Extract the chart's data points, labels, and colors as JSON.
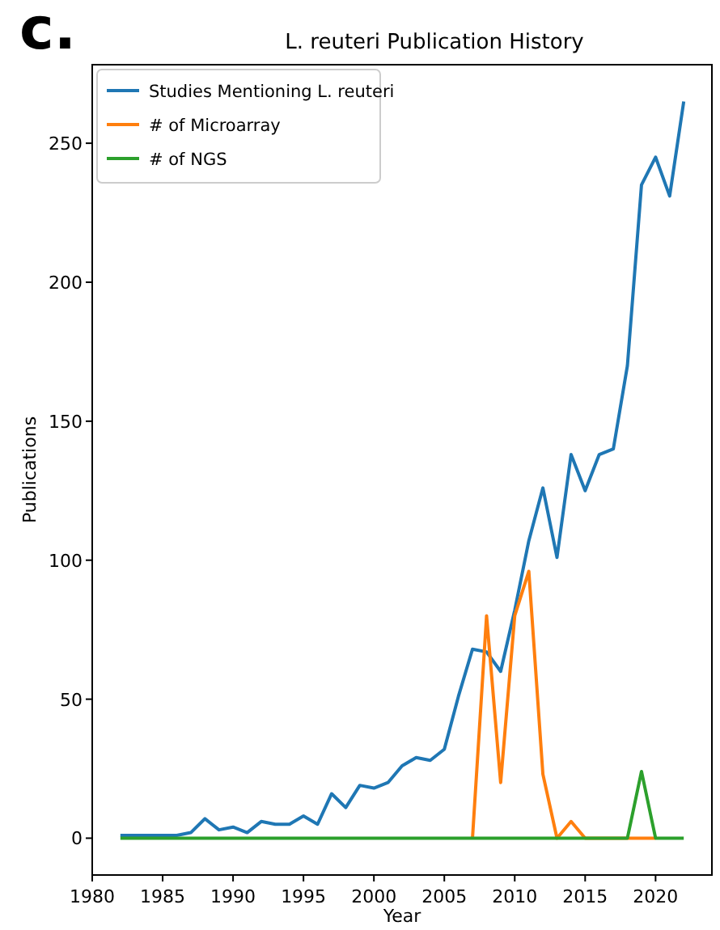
{
  "chart_data": {
    "type": "line",
    "title": "L. reuteri Publication History",
    "xlabel": "Year",
    "ylabel": "Publications",
    "annotations": [
      "c."
    ],
    "xlim": [
      1980,
      2024
    ],
    "xticks": [
      1980,
      1985,
      1990,
      1995,
      2000,
      2005,
      2010,
      2015,
      2020
    ],
    "ylim": [
      -13.25,
      278.25
    ],
    "yticks": [
      0,
      50,
      100,
      150,
      200,
      250
    ],
    "grid": false,
    "legend": "top left",
    "marker": "none",
    "line_style": "solid",
    "series": [
      {
        "name": "Studies Mentioning L. reuteri",
        "color": "#1f77b4",
        "x": [
          1982,
          1983,
          1984,
          1985,
          1986,
          1987,
          1988,
          1989,
          1990,
          1991,
          1992,
          1993,
          1994,
          1995,
          1996,
          1997,
          1998,
          1999,
          2000,
          2001,
          2002,
          2003,
          2004,
          2005,
          2006,
          2007,
          2008,
          2009,
          2010,
          2011,
          2012,
          2013,
          2014,
          2015,
          2016,
          2017,
          2018,
          2019,
          2020,
          2021,
          2022
        ],
        "values": [
          1,
          1,
          1,
          1,
          1,
          2,
          7,
          3,
          4,
          2,
          6,
          5,
          5,
          8,
          5,
          16,
          11,
          19,
          18,
          20,
          26,
          29,
          28,
          32,
          51,
          68,
          67,
          60,
          82,
          107,
          126,
          101,
          138,
          125,
          138,
          140,
          170,
          235,
          245,
          231,
          265
        ]
      },
      {
        "name": "# of Microarray",
        "color": "#ff7f0e",
        "x": [
          2007,
          2008,
          2009,
          2010,
          2011,
          2012,
          2013,
          2014,
          2015,
          2016,
          2017,
          2018,
          2019,
          2020
        ],
        "values": [
          0,
          80,
          20,
          80,
          96,
          23,
          0,
          6,
          0,
          null,
          null,
          0,
          0,
          0
        ]
      },
      {
        "name": "# of NGS",
        "color": "#2ca02c",
        "x": [
          1982,
          1983,
          1984,
          1985,
          1986,
          1987,
          1988,
          1989,
          1990,
          1991,
          1992,
          1993,
          1994,
          1995,
          1996,
          1997,
          1998,
          1999,
          2000,
          2001,
          2002,
          2003,
          2004,
          2005,
          2006,
          2007,
          2008,
          2009,
          2010,
          2011,
          2012,
          2013,
          2014,
          2015,
          2016,
          2017,
          2018,
          2019,
          2020,
          2021,
          2022
        ],
        "values": [
          0,
          0,
          0,
          0,
          0,
          0,
          0,
          0,
          0,
          0,
          0,
          0,
          0,
          0,
          0,
          0,
          0,
          0,
          0,
          0,
          0,
          0,
          0,
          0,
          0,
          0,
          0,
          0,
          0,
          0,
          0,
          0,
          0,
          0,
          0,
          0,
          0,
          24,
          0,
          0,
          0
        ]
      }
    ]
  }
}
